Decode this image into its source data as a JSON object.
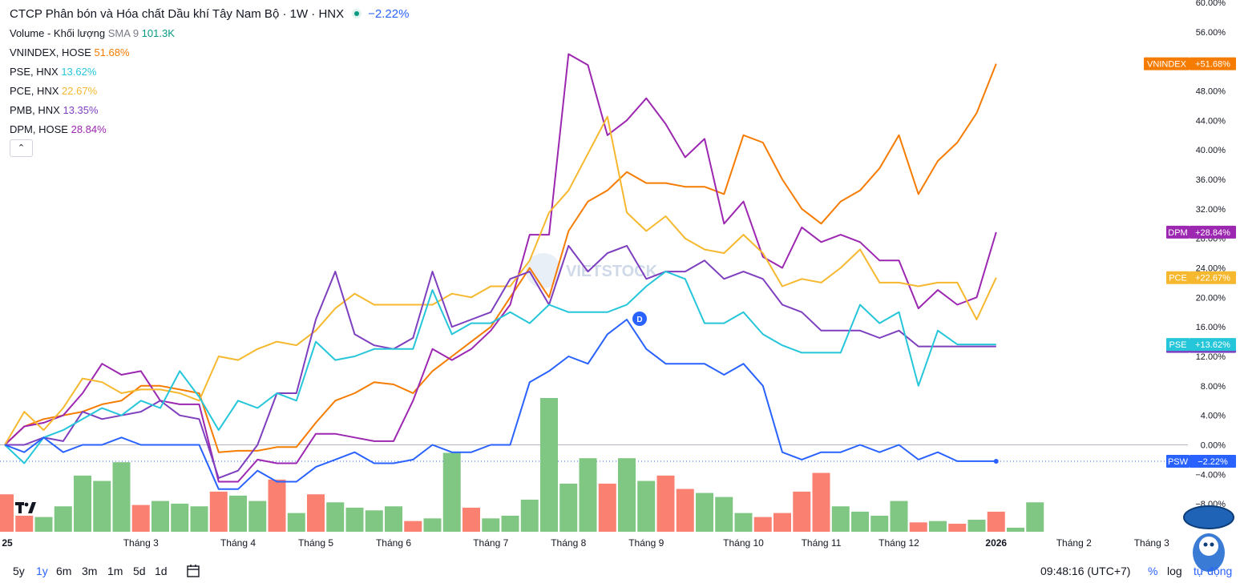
{
  "header": {
    "title": "CTCP Phân bón và Hóa chất Dầu khí Tây Nam Bộ · 1W · HNX",
    "change": "−2.22%"
  },
  "legend": [
    {
      "name": "Volume - Khối lượng",
      "extra": "SMA 9",
      "value": "101.3K",
      "color": "#089981"
    },
    {
      "name": "VNINDEX, HOSE",
      "value": "51.68%",
      "color": "#f57c00"
    },
    {
      "name": "PSE, HNX",
      "value": "13.62%",
      "color": "#26c6da"
    },
    {
      "name": "PCE, HNX",
      "value": "22.67%",
      "color": "#f5b82e"
    },
    {
      "name": "PMB, HNX",
      "value": "13.35%",
      "color": "#7e3fbf"
    },
    {
      "name": "DPM, HOSE",
      "value": "28.84%",
      "color": "#9c27b0"
    }
  ],
  "collapse_icon": "chevron-up-icon",
  "toolbar": {
    "ranges": [
      "5y",
      "1y",
      "6m",
      "3m",
      "1m",
      "5d",
      "1d"
    ],
    "active_range": "1y",
    "time": "09:48:16 (UTC+7)",
    "percent": "%",
    "log": "log",
    "auto": "tự động"
  },
  "watermark": "VIETSTOCK",
  "event_marker": "D",
  "chart_data": {
    "type": "line",
    "x_labels": [
      "25",
      "Tháng 3",
      "Tháng 4",
      "Tháng 5",
      "Tháng 6",
      "Tháng 7",
      "Tháng 8",
      "Tháng 9",
      "Tháng 10",
      "Tháng 11",
      "Tháng 12",
      "2026",
      "Tháng 2",
      "Tháng 3"
    ],
    "x_label_index": [
      0,
      7,
      12,
      16,
      20,
      25,
      29,
      33,
      38,
      42,
      46,
      51,
      55,
      59
    ],
    "ylim": [
      -12,
      60
    ],
    "yticks": [
      -8,
      -4,
      0,
      4,
      8,
      12,
      16,
      20,
      24,
      28,
      32,
      36,
      40,
      44,
      48,
      52,
      56,
      60
    ],
    "ytick_suffix": "%",
    "series": [
      {
        "name": "VNINDEX",
        "color": "#f57c00",
        "label": "+51.68%",
        "values": [
          0,
          2.5,
          3.5,
          4,
          4.5,
          5.5,
          6,
          8,
          8,
          7.5,
          7,
          -1,
          -0.8,
          -0.8,
          -0.3,
          -0.3,
          3,
          6,
          7,
          8.5,
          8.2,
          7,
          10,
          12,
          14,
          16,
          20,
          24,
          20,
          29,
          33,
          34.5,
          37,
          35.5,
          35.5,
          35,
          35,
          34,
          42,
          41,
          36,
          32,
          30,
          33,
          34.5,
          37.5,
          42,
          34,
          38.5,
          41,
          45,
          51.68
        ]
      },
      {
        "name": "DPM",
        "color": "#9c27b0",
        "label": "+28.84%",
        "values": [
          0,
          2.5,
          3,
          4,
          7,
          11,
          9.5,
          10,
          6,
          5.5,
          5.5,
          -5,
          -5,
          -2,
          -2.5,
          -2.5,
          1.5,
          1.5,
          1,
          0.5,
          0.5,
          6,
          13,
          11.5,
          13,
          15.5,
          19,
          28.5,
          28.5,
          53,
          51.5,
          42,
          44,
          47,
          43.5,
          39,
          41.5,
          30,
          33,
          25.5,
          24,
          29.5,
          27.5,
          28.5,
          27.5,
          25,
          25,
          18.5,
          21,
          19,
          20,
          28.84
        ]
      },
      {
        "name": "PCE",
        "color": "#f5b82e",
        "label": "+22.67%",
        "values": [
          0,
          4.5,
          2,
          5,
          9,
          8.5,
          7,
          7.5,
          7.5,
          7,
          6,
          12,
          11.5,
          13,
          14,
          13.5,
          15.5,
          18.5,
          20.5,
          19,
          19,
          19,
          19,
          20.5,
          20,
          21.5,
          21.5,
          25,
          31.5,
          34.5,
          39.5,
          44.5,
          31.5,
          29,
          31,
          28,
          26.5,
          26,
          28.5,
          26,
          21.5,
          22.5,
          22,
          24,
          26.5,
          22,
          22,
          21.5,
          22,
          22,
          17,
          22.67
        ]
      },
      {
        "name": "PMB",
        "color": "#7e3fbf",
        "label": "+13.35%",
        "values": [
          0,
          0,
          1,
          0.5,
          4.5,
          3.5,
          4,
          4.5,
          6,
          4,
          3.5,
          -4.5,
          -3.5,
          0,
          7,
          7,
          17,
          23.5,
          15,
          13.5,
          13,
          14.5,
          23.5,
          16,
          17,
          18,
          22.5,
          23.5,
          19,
          27,
          23.5,
          26,
          27,
          22.5,
          23.5,
          23.5,
          25,
          22.5,
          23.5,
          22.5,
          19,
          18,
          15.5,
          15.5,
          15.5,
          14.5,
          15.5,
          13.35,
          13.35,
          13.35,
          13.35,
          13.35
        ]
      },
      {
        "name": "PSE",
        "color": "#26c6da",
        "label": "+13.62%",
        "values": [
          0,
          -2.5,
          1,
          2,
          3.5,
          5,
          4,
          6,
          5,
          10,
          6.5,
          2,
          6,
          5,
          7,
          6,
          14,
          11.5,
          12,
          13,
          13,
          13,
          21,
          15,
          16.5,
          16.5,
          18,
          16.5,
          19,
          18,
          18,
          18,
          19,
          21.5,
          23.5,
          22.5,
          16.5,
          16.5,
          18,
          15,
          13.5,
          12.5,
          12.5,
          12.5,
          19,
          16.5,
          18,
          8,
          15.5,
          13.62,
          13.62,
          13.62
        ]
      },
      {
        "name": "PSW",
        "color": "#2962ff",
        "label": "−2.22%",
        "values": [
          0,
          -1,
          1,
          -1,
          0,
          0,
          1,
          0,
          0,
          0,
          0,
          -6,
          -6,
          -3.5,
          -5,
          -5,
          -3,
          -2,
          -1,
          -2.5,
          -2.5,
          -2,
          0,
          -1,
          -1,
          0,
          0,
          8.5,
          10,
          12,
          11,
          15,
          17,
          13,
          11,
          11,
          11,
          9.5,
          11,
          8,
          -1,
          -2,
          -1,
          -1,
          0,
          -1,
          0,
          -2,
          -1,
          -2.22,
          -2.22,
          -2.22
        ]
      }
    ],
    "volume": {
      "ylim": [
        0,
        100
      ],
      "values": [
        28,
        12,
        11,
        19,
        42,
        38,
        52,
        20,
        23,
        21,
        19,
        30,
        27,
        23,
        39,
        14,
        28,
        22,
        18,
        16,
        19,
        8,
        10,
        59,
        18,
        10,
        12,
        24,
        100,
        36,
        55,
        36,
        55,
        38,
        42,
        32,
        29,
        26,
        14,
        11,
        14,
        30,
        44,
        19,
        15,
        12,
        23,
        7,
        8,
        6,
        9,
        15,
        3,
        22
      ],
      "up": [
        0,
        0,
        1,
        1,
        1,
        1,
        1,
        0,
        1,
        1,
        1,
        0,
        1,
        1,
        0,
        1,
        0,
        1,
        1,
        1,
        1,
        0,
        1,
        1,
        0,
        1,
        1,
        1,
        1,
        1,
        1,
        0,
        1,
        1,
        0,
        0,
        1,
        1,
        1,
        0,
        0,
        0,
        0,
        1,
        1,
        1,
        1,
        0,
        1,
        0,
        1,
        0,
        1,
        1
      ],
      "up_color": "#81c784",
      "down_color": "#fa8072"
    }
  }
}
